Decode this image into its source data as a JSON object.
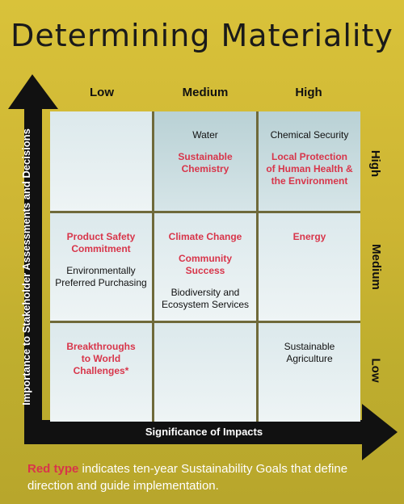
{
  "title": "Determining Materiality",
  "x_axis": {
    "label": "Significance of Impacts",
    "levels": [
      "Low",
      "Medium",
      "High"
    ]
  },
  "y_axis": {
    "label": "Importance to Stakeholder Assessments and Decisions",
    "levels": [
      "High",
      "Medium",
      "Low"
    ]
  },
  "cells": {
    "high_low": [],
    "high_medium": [
      {
        "text": "Water",
        "red": false
      },
      {
        "text": "Sustainable\nChemistry",
        "red": true
      }
    ],
    "high_high": [
      {
        "text": "Chemical Security",
        "red": false
      },
      {
        "text": "Local Protection\nof Human Health &\nthe Environment",
        "red": true
      }
    ],
    "medium_low": [
      {
        "text": "Product Safety\nCommitment",
        "red": true
      },
      {
        "text": "Environmentally\nPreferred Purchasing",
        "red": false
      }
    ],
    "medium_medium": [
      {
        "text": "Climate Change",
        "red": true
      },
      {
        "text": "Community\nSuccess",
        "red": true
      },
      {
        "text": "Biodiversity and\nEcosystem Services",
        "red": false
      }
    ],
    "medium_high": [
      {
        "text": "Energy",
        "red": true
      }
    ],
    "low_low": [
      {
        "text": "Breakthroughs\nto World\nChallenges*",
        "red": true
      }
    ],
    "low_medium": [],
    "low_high": [
      {
        "text": "Sustainable\nAgriculture",
        "red": false
      }
    ]
  },
  "footer": {
    "red_part": "Red type",
    "rest": " indicates ten-year Sustainability Goals that define direction and guide implementation."
  },
  "colors": {
    "red": "#d8354a",
    "background": "#cdb533",
    "axis": "#111111"
  }
}
